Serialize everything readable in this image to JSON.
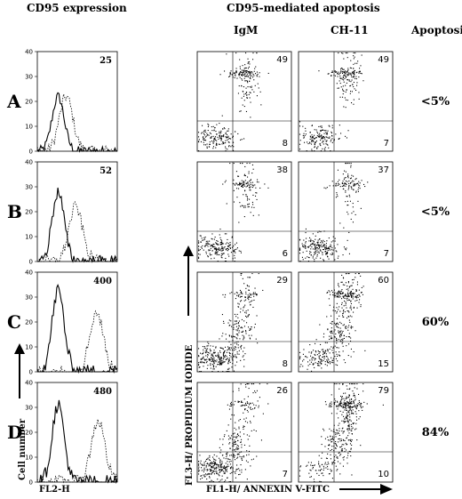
{
  "headers": {
    "cd95_expression": "CD95 expression",
    "cd95_mediated_apoptosis": "CD95-mediated apoptosis",
    "igm": "IgM",
    "ch11": "CH-11",
    "apoptosis": "Apoptosis"
  },
  "axis_labels": {
    "cell_number": "Cell number",
    "fl2h": "FL2-H",
    "fl3h": "FL3-H/ PROPIDIUM IODIDE",
    "fl1h": "FL1-H/ ANNEXIN V-FITC"
  },
  "chart_data": {
    "type": "figure-panel-grid",
    "histogram_y_ticks": [
      "0",
      "10",
      "20",
      "30",
      "40"
    ],
    "rows": [
      {
        "label": "A",
        "mfi": "25",
        "igm_upper": "49",
        "igm_lower": "8",
        "ch11_upper": "49",
        "ch11_lower": "7",
        "apoptosis": "<5%"
      },
      {
        "label": "B",
        "mfi": "52",
        "igm_upper": "38",
        "igm_lower": "6",
        "ch11_upper": "37",
        "ch11_lower": "7",
        "apoptosis": "<5%"
      },
      {
        "label": "C",
        "mfi": "400",
        "igm_upper": "29",
        "igm_lower": "8",
        "ch11_upper": "60",
        "ch11_lower": "15",
        "apoptosis": "60%"
      },
      {
        "label": "D",
        "mfi": "480",
        "igm_upper": "26",
        "igm_lower": "7",
        "ch11_upper": "79",
        "ch11_lower": "10",
        "apoptosis": "84%"
      }
    ]
  }
}
